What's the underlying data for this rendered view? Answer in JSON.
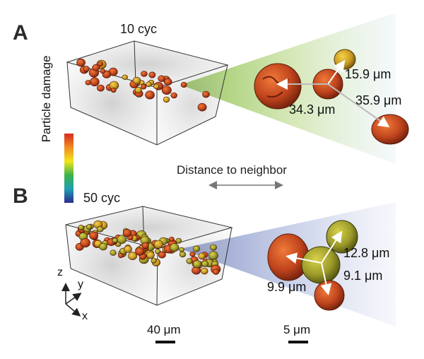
{
  "panels": [
    {
      "letter": "A",
      "cycles": "10 cyc",
      "distances": [
        "15.9 μm",
        "34.3 μm",
        "35.9 μm"
      ]
    },
    {
      "letter": "B",
      "cycles": "50 cyc",
      "distances": [
        "12.8 μm",
        "9.9 μm",
        "9.1 μm"
      ]
    }
  ],
  "colorbar": {
    "label": "Particle damage",
    "colors": [
      "#d62b1f",
      "#f08c21",
      "#f2e51c",
      "#3db34a",
      "#1f9fb2",
      "#2b2b8c"
    ]
  },
  "center_label": "Distance to neighbor",
  "axes": {
    "z": "z",
    "y": "y",
    "x": "x"
  },
  "scalebars": {
    "overview": "40 μm",
    "detail": "5 μm"
  },
  "colors": {
    "beam_a": "#9ccc5a",
    "beam_b": "#8fa0cc",
    "particle": "#c0451d"
  }
}
